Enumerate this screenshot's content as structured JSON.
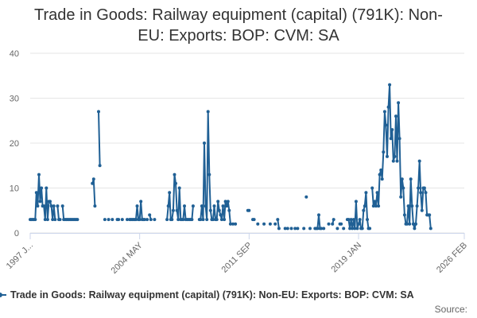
{
  "chart_data": {
    "type": "line",
    "title_lines": [
      "Trade in Goods: Railway equipment (capital) (791K): Non-",
      "EU: Exports: BOP: CVM: SA"
    ],
    "xlabel": "",
    "ylabel": "",
    "ylim": [
      0,
      40
    ],
    "yticks": [
      0,
      10,
      20,
      30,
      40
    ],
    "x_ticks": [
      {
        "label": "1997 J...",
        "index": 0
      },
      {
        "label": "2004 MAY",
        "index": 88
      },
      {
        "label": "2011 SEP",
        "index": 176
      },
      {
        "label": "2019 JAN",
        "index": 264
      },
      {
        "label": "2026 FEB",
        "index": 349
      }
    ],
    "x_count": 350,
    "series": [
      {
        "name": "Trade in Goods: Railway equipment (capital) (791K): Non-EU: Exports: BOP: CVM: SA",
        "color": "#206095",
        "points": [
          [
            0,
            3
          ],
          [
            1,
            3
          ],
          [
            2,
            3
          ],
          [
            3,
            3
          ],
          [
            4,
            3
          ],
          [
            5,
            9
          ],
          [
            6,
            6
          ],
          [
            7,
            13
          ],
          [
            8,
            7
          ],
          [
            9,
            10
          ],
          [
            10,
            6
          ],
          [
            11,
            6
          ],
          [
            12,
            3
          ],
          [
            13,
            10
          ],
          [
            14,
            3
          ],
          [
            15,
            7
          ],
          [
            16,
            7
          ],
          [
            17,
            6
          ],
          [
            18,
            3
          ],
          [
            19,
            6
          ],
          [
            20,
            3
          ],
          [
            22,
            6
          ],
          [
            23,
            3
          ],
          [
            24,
            3
          ],
          [
            26,
            6
          ],
          [
            27,
            3
          ],
          [
            28,
            3
          ],
          [
            29,
            3
          ],
          [
            30,
            3
          ],
          [
            31,
            3
          ],
          [
            32,
            3
          ],
          [
            33,
            3
          ],
          [
            34,
            3
          ],
          [
            35,
            3
          ],
          [
            36,
            3
          ],
          [
            37,
            3
          ],
          [
            38,
            3
          ],
          [
            50,
            11
          ],
          [
            51,
            12
          ],
          [
            52,
            6
          ],
          [
            55,
            27
          ],
          [
            56,
            15
          ],
          [
            60,
            3
          ],
          [
            63,
            3
          ],
          [
            66,
            3
          ],
          [
            70,
            3
          ],
          [
            71,
            3
          ],
          [
            74,
            3
          ],
          [
            78,
            3
          ],
          [
            80,
            3
          ],
          [
            81,
            3
          ],
          [
            82,
            3
          ],
          [
            83,
            3
          ],
          [
            84,
            3
          ],
          [
            85,
            3
          ],
          [
            86,
            6
          ],
          [
            87,
            3
          ],
          [
            88,
            3
          ],
          [
            89,
            7
          ],
          [
            90,
            3
          ],
          [
            91,
            3
          ],
          [
            92,
            3
          ],
          [
            94,
            3
          ],
          [
            96,
            4
          ],
          [
            97,
            3
          ],
          [
            100,
            3
          ],
          [
            110,
            3
          ],
          [
            111,
            6
          ],
          [
            112,
            9
          ],
          [
            113,
            3
          ],
          [
            114,
            3
          ],
          [
            115,
            5
          ],
          [
            116,
            13
          ],
          [
            117,
            11
          ],
          [
            118,
            5
          ],
          [
            119,
            3
          ],
          [
            120,
            10
          ],
          [
            121,
            3
          ],
          [
            122,
            3
          ],
          [
            123,
            3
          ],
          [
            124,
            6
          ],
          [
            125,
            3
          ],
          [
            126,
            3
          ],
          [
            127,
            3
          ],
          [
            128,
            3
          ],
          [
            129,
            3
          ],
          [
            130,
            3
          ],
          [
            131,
            6
          ],
          [
            136,
            3
          ],
          [
            137,
            3
          ],
          [
            138,
            6
          ],
          [
            139,
            3
          ],
          [
            140,
            20
          ],
          [
            141,
            6
          ],
          [
            142,
            3
          ],
          [
            143,
            27
          ],
          [
            144,
            13
          ],
          [
            145,
            5
          ],
          [
            146,
            3
          ],
          [
            147,
            3
          ],
          [
            148,
            6
          ],
          [
            149,
            3
          ],
          [
            150,
            3
          ],
          [
            151,
            7
          ],
          [
            152,
            5
          ],
          [
            153,
            4
          ],
          [
            154,
            3
          ],
          [
            155,
            6
          ],
          [
            156,
            3
          ],
          [
            157,
            7
          ],
          [
            158,
            6
          ],
          [
            159,
            7
          ],
          [
            160,
            5
          ],
          [
            161,
            2
          ],
          [
            163,
            2
          ],
          [
            165,
            2
          ],
          [
            175,
            5
          ],
          [
            176,
            5
          ],
          [
            179,
            3
          ],
          [
            180,
            3
          ],
          [
            183,
            2
          ],
          [
            188,
            2
          ],
          [
            193,
            2
          ],
          [
            197,
            2
          ],
          [
            199,
            3
          ],
          [
            200,
            1
          ],
          [
            205,
            1
          ],
          [
            207,
            1
          ],
          [
            210,
            1
          ],
          [
            213,
            1
          ],
          [
            215,
            1
          ],
          [
            220,
            1
          ],
          [
            222,
            8
          ],
          [
            225,
            1
          ],
          [
            229,
            1
          ],
          [
            230,
            1
          ],
          [
            231,
            1
          ],
          [
            232,
            4
          ],
          [
            233,
            1
          ],
          [
            234,
            1
          ],
          [
            236,
            1
          ],
          [
            240,
            2
          ],
          [
            243,
            2
          ],
          [
            244,
            3
          ],
          [
            247,
            1
          ],
          [
            249,
            2
          ],
          [
            250,
            2
          ],
          [
            252,
            1
          ],
          [
            255,
            3
          ],
          [
            256,
            3
          ],
          [
            257,
            1
          ],
          [
            258,
            3
          ],
          [
            259,
            1
          ],
          [
            260,
            3
          ],
          [
            261,
            1
          ],
          [
            262,
            7
          ],
          [
            263,
            1
          ],
          [
            264,
            2
          ],
          [
            265,
            3
          ],
          [
            266,
            1
          ],
          [
            267,
            1
          ],
          [
            268,
            5
          ],
          [
            269,
            6
          ],
          [
            270,
            9
          ],
          [
            271,
            3
          ],
          [
            272,
            1
          ],
          [
            273,
            1
          ],
          [
            275,
            10
          ],
          [
            276,
            6
          ],
          [
            277,
            7
          ],
          [
            278,
            6
          ],
          [
            279,
            9
          ],
          [
            280,
            6
          ],
          [
            281,
            13
          ],
          [
            282,
            14
          ],
          [
            283,
            12
          ],
          [
            284,
            18
          ],
          [
            285,
            27
          ],
          [
            286,
            24
          ],
          [
            287,
            17
          ],
          [
            288,
            28
          ],
          [
            289,
            33
          ],
          [
            290,
            21
          ],
          [
            291,
            23
          ],
          [
            292,
            16
          ],
          [
            293,
            17
          ],
          [
            294,
            26
          ],
          [
            295,
            16
          ],
          [
            296,
            29
          ],
          [
            297,
            21
          ],
          [
            298,
            8
          ],
          [
            299,
            12
          ],
          [
            300,
            10
          ],
          [
            301,
            4
          ],
          [
            302,
            2
          ],
          [
            303,
            2
          ],
          [
            304,
            6
          ],
          [
            305,
            2
          ],
          [
            306,
            12
          ],
          [
            307,
            6
          ],
          [
            308,
            2
          ],
          [
            309,
            1
          ],
          [
            310,
            2
          ],
          [
            311,
            6
          ],
          [
            312,
            10
          ],
          [
            313,
            16
          ],
          [
            314,
            9
          ],
          [
            315,
            5
          ],
          [
            316,
            10
          ],
          [
            317,
            10
          ],
          [
            318,
            9
          ],
          [
            319,
            4
          ],
          [
            320,
            4
          ],
          [
            321,
            4
          ],
          [
            322,
            1
          ]
        ]
      }
    ]
  },
  "legend": {
    "label": "Trade in Goods: Railway equipment (capital) (791K): Non-EU: Exports: BOP: CVM: SA"
  },
  "source": {
    "label": "Source:"
  }
}
